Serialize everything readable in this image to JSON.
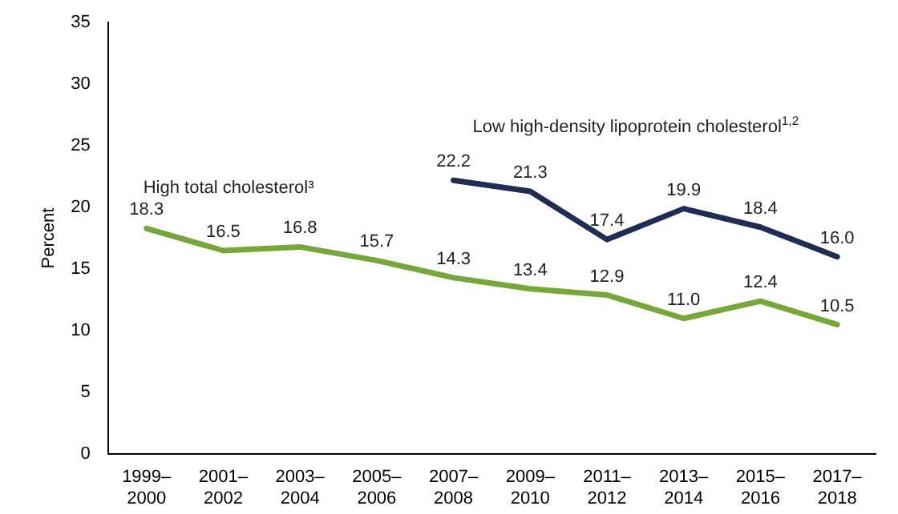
{
  "chart_data": {
    "type": "line",
    "ylabel": "Percent",
    "categories": [
      "1999–2000",
      "2001–2002",
      "2003–2004",
      "2005–2006",
      "2007–2008",
      "2009–2010",
      "2011–2012",
      "2013–2014",
      "2015–2016",
      "2017–2018"
    ],
    "series": [
      {
        "name": "High total cholesterol³",
        "color": "#76a73a",
        "values": [
          18.3,
          16.5,
          16.8,
          15.7,
          14.3,
          13.4,
          12.9,
          11.0,
          12.4,
          10.5
        ],
        "value_labels": [
          "18.3",
          "16.5",
          "16.8",
          "15.7",
          "14.3",
          "13.4",
          "12.9",
          "11.0",
          "12.4",
          "10.5"
        ]
      },
      {
        "name": "Low high-density lipoprotein cholesterol$^{1,2}$",
        "color": "#1f2d54",
        "values": [
          null,
          null,
          null,
          null,
          22.2,
          21.3,
          17.4,
          19.9,
          18.4,
          16.0
        ],
        "value_labels": [
          null,
          null,
          null,
          null,
          "22.2",
          "21.3",
          "17.4",
          "19.9",
          "18.4",
          "16.0"
        ]
      }
    ],
    "ylim": [
      0,
      35
    ],
    "yticks": [
      0,
      5,
      10,
      15,
      20,
      25,
      30,
      35
    ],
    "grid": false,
    "legend": false,
    "marker": "none",
    "line_style": "solid"
  }
}
